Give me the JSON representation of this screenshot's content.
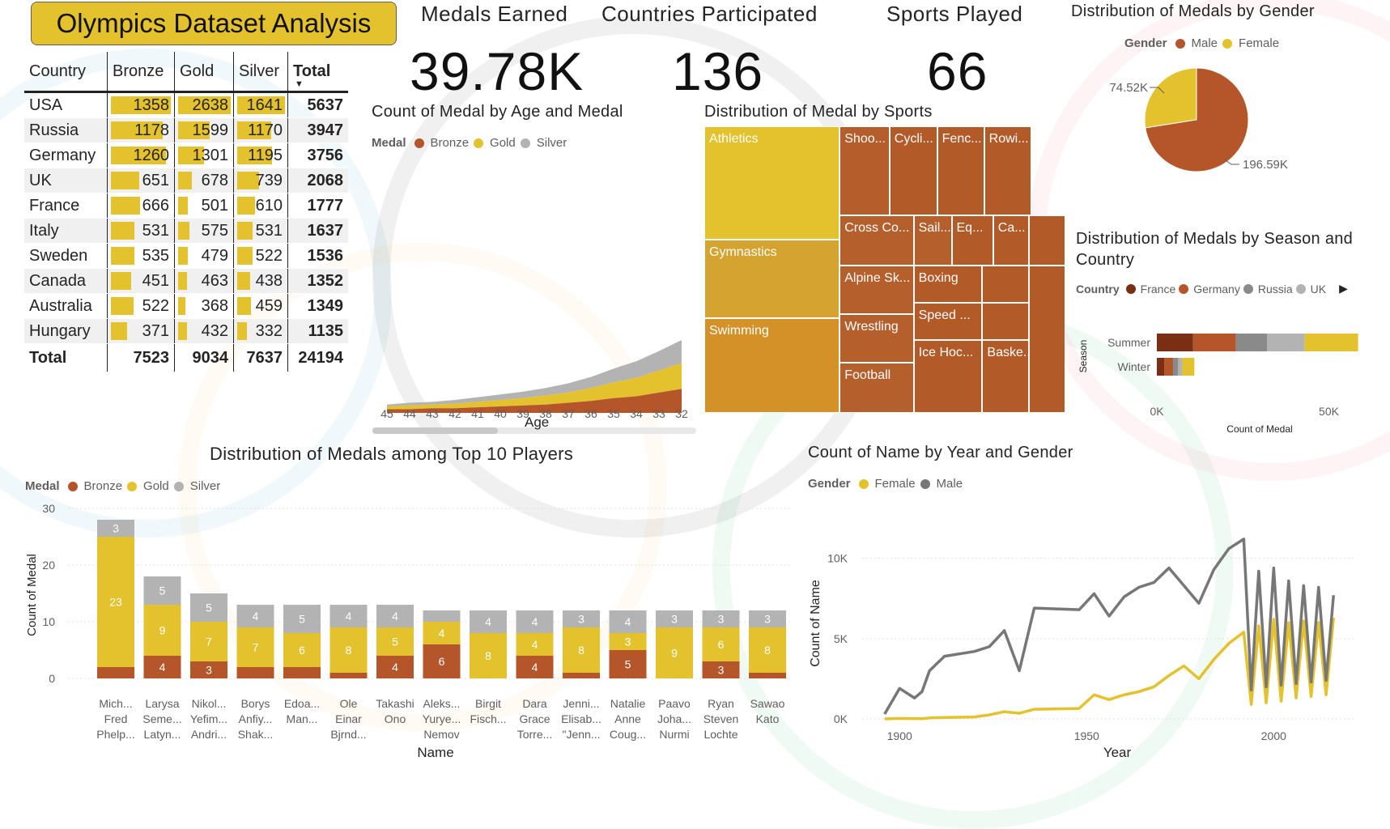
{
  "dashboard": {
    "title": "Olympics Dataset Analysis",
    "kpis": [
      {
        "label": "Medals Earned",
        "value": "39.78K"
      },
      {
        "label": "Countries Participated",
        "value": "136"
      },
      {
        "label": "Sports Played",
        "value": "66"
      }
    ]
  },
  "colors": {
    "bronze": "#b4552a",
    "gold": "#e3c22e",
    "silver": "#b3b3b3",
    "male": "#b4552a",
    "female": "#e3c22e",
    "france": "#7a2e14",
    "germany": "#b4552a",
    "russia": "#8a8a8a",
    "uk": "#b3b3b3",
    "title_bg": "#e3c22e"
  },
  "medal_table": {
    "headers": [
      "Country",
      "Bronze",
      "Gold",
      "Silver",
      "Total"
    ],
    "rows": [
      {
        "country": "USA",
        "bronze": 1358,
        "gold": 2638,
        "silver": 1641,
        "total": 5637
      },
      {
        "country": "Russia",
        "bronze": 1178,
        "gold": 1599,
        "silver": 1170,
        "total": 3947
      },
      {
        "country": "Germany",
        "bronze": 1260,
        "gold": 1301,
        "silver": 1195,
        "total": 3756
      },
      {
        "country": "UK",
        "bronze": 651,
        "gold": 678,
        "silver": 739,
        "total": 2068
      },
      {
        "country": "France",
        "bronze": 666,
        "gold": 501,
        "silver": 610,
        "total": 1777
      },
      {
        "country": "Italy",
        "bronze": 531,
        "gold": 575,
        "silver": 531,
        "total": 1637
      },
      {
        "country": "Sweden",
        "bronze": 535,
        "gold": 479,
        "silver": 522,
        "total": 1536
      },
      {
        "country": "Canada",
        "bronze": 451,
        "gold": 463,
        "silver": 438,
        "total": 1352
      },
      {
        "country": "Australia",
        "bronze": 522,
        "gold": 368,
        "silver": 459,
        "total": 1349
      },
      {
        "country": "Hungary",
        "bronze": 371,
        "gold": 432,
        "silver": 332,
        "total": 1135
      }
    ],
    "totals": {
      "label": "Total",
      "bronze": 7523,
      "gold": 9034,
      "silver": 7637,
      "total": 24194
    }
  },
  "chart_data": [
    {
      "id": "age",
      "type": "area",
      "title": "Count of Medal by Age and Medal",
      "legend_title": "Medal",
      "xlabel": "Age",
      "categories": [
        "45",
        "44",
        "43",
        "42",
        "41",
        "40",
        "39",
        "38",
        "37",
        "36",
        "35",
        "34",
        "33",
        "32"
      ],
      "series": [
        {
          "name": "Bronze",
          "values": [
            20,
            20,
            25,
            25,
            30,
            35,
            40,
            45,
            55,
            65,
            80,
            90,
            110,
            130
          ]
        },
        {
          "name": "Gold",
          "values": [
            15,
            20,
            20,
            25,
            30,
            35,
            40,
            50,
            55,
            70,
            85,
            100,
            120,
            140
          ]
        },
        {
          "name": "Silver",
          "values": [
            10,
            15,
            15,
            20,
            25,
            30,
            35,
            40,
            50,
            60,
            75,
            90,
            105,
            125
          ]
        }
      ]
    },
    {
      "id": "sports",
      "type": "treemap",
      "title": "Distribution of Medal by Sports",
      "items": [
        {
          "name": "Athletics",
          "value": 3900
        },
        {
          "name": "Gymnastics",
          "value": 2700
        },
        {
          "name": "Swimming",
          "value": 2500
        },
        {
          "name": "Shoo...",
          "value": 1000
        },
        {
          "name": "Cycli...",
          "value": 900
        },
        {
          "name": "Fenc...",
          "value": 800
        },
        {
          "name": "Rowi...",
          "value": 800
        },
        {
          "name": "Cross Co...",
          "value": 600
        },
        {
          "name": "Sail...",
          "value": 450
        },
        {
          "name": "Eq...",
          "value": 400
        },
        {
          "name": "Ca...",
          "value": 350
        },
        {
          "name": "Alpine Sk...",
          "value": 600
        },
        {
          "name": "Boxing",
          "value": 420
        },
        {
          "name": "Wrestling",
          "value": 650
        },
        {
          "name": "Speed ...",
          "value": 380
        },
        {
          "name": "Football",
          "value": 550
        },
        {
          "name": "Ice Hoc...",
          "value": 400
        },
        {
          "name": "Baske...",
          "value": 380
        }
      ]
    },
    {
      "id": "gender",
      "type": "pie",
      "title": "Distribution of Medals by Gender",
      "legend_title": "Gender",
      "labels": [
        "Male",
        "Female"
      ],
      "values": [
        196.59,
        74.52
      ],
      "data_labels": [
        "196.59K",
        "74.52K"
      ]
    },
    {
      "id": "season",
      "type": "bar",
      "orientation": "horizontal",
      "stacked": true,
      "title": "Distribution of Medals by Season and Country",
      "legend_title": "Country",
      "ylabel": "Season",
      "xlabel": "Count of Medal",
      "categories": [
        "Summer",
        "Winter"
      ],
      "xlim": [
        0,
        60000
      ],
      "xticks": [
        "0K",
        "50K"
      ],
      "series": [
        {
          "name": "France",
          "values": [
            10500,
            2200
          ]
        },
        {
          "name": "Germany",
          "values": [
            12500,
            2500
          ]
        },
        {
          "name": "Russia",
          "values": [
            9000,
            1500
          ]
        },
        {
          "name": "UK",
          "values": [
            11000,
            1200
          ]
        },
        {
          "name": "Other",
          "values": [
            15500,
            3500
          ]
        }
      ]
    },
    {
      "id": "players",
      "type": "bar",
      "stacked": true,
      "title": "Distribution of Medals among Top 10 Players",
      "legend_title": "Medal",
      "xlabel": "Name",
      "ylabel": "Count of Medal",
      "ylim": [
        0,
        30
      ],
      "yticks": [
        0,
        10,
        20,
        30
      ],
      "categories": [
        "Mich... Fred Phelp...",
        "Larysa Seme... Latyn...",
        "Nikol... Yefim... Andri...",
        "Borys Anfiy... Shak...",
        "Edoa... Man...",
        "Ole Einar Bjrnd...",
        "Takashi Ono",
        "Aleks... Yurye... Nemov",
        "Birgit Fisch...",
        "Dara Grace Torre...",
        "Jenni... Elisab... \"Jenn...",
        "Natalie Anne Coug...",
        "Paavo Joha... Nurmi",
        "Ryan Steven Lochte",
        "Sawao Kato"
      ],
      "series": [
        {
          "name": "Bronze",
          "values": [
            2,
            4,
            3,
            2,
            2,
            1,
            4,
            6,
            0,
            4,
            1,
            5,
            0,
            3,
            1
          ]
        },
        {
          "name": "Gold",
          "values": [
            23,
            9,
            7,
            7,
            6,
            8,
            5,
            4,
            8,
            4,
            8,
            3,
            9,
            6,
            8
          ]
        },
        {
          "name": "Silver",
          "values": [
            3,
            5,
            5,
            4,
            5,
            4,
            4,
            2,
            4,
            4,
            3,
            4,
            3,
            3,
            3
          ]
        }
      ],
      "data_labels": [
        [
          "",
          "4",
          "3",
          "",
          "",
          "",
          "4",
          "6",
          "",
          "4",
          "",
          "5",
          "",
          "3",
          ""
        ],
        [
          "23",
          "9",
          "7",
          "7",
          "6",
          "8",
          "5",
          "4",
          "8",
          "4",
          "8",
          "3",
          "9",
          "6",
          "8"
        ],
        [
          "3",
          "5",
          "5",
          "4",
          "5",
          "4",
          "4",
          "",
          "4",
          "4",
          "3",
          "4",
          "3",
          "3",
          "3"
        ]
      ]
    },
    {
      "id": "year",
      "type": "line",
      "title": "Count of Name by Year and Gender",
      "legend_title": "Gender",
      "xlabel": "Year",
      "ylabel": "Count of Name",
      "ylim": [
        0,
        12000
      ],
      "yticks": [
        "0K",
        "5K",
        "10K"
      ],
      "ytick_values": [
        0,
        5000,
        10000
      ],
      "xlim": [
        1890,
        2022
      ],
      "xticks": [
        1900,
        1950,
        2000
      ],
      "series": [
        {
          "name": "Female",
          "x": [
            1896,
            1900,
            1904,
            1906,
            1908,
            1912,
            1920,
            1924,
            1928,
            1932,
            1936,
            1948,
            1952,
            1956,
            1960,
            1964,
            1968,
            1972,
            1976,
            1980,
            1984,
            1988,
            1992,
            1994,
            1996,
            1998,
            2000,
            2002,
            2004,
            2006,
            2008,
            2010,
            2012,
            2014,
            2016
          ],
          "y": [
            0,
            30,
            20,
            10,
            60,
            90,
            120,
            250,
            450,
            350,
            600,
            650,
            1500,
            1200,
            1500,
            1700,
            2000,
            2700,
            3300,
            2500,
            3700,
            4700,
            5400,
            900,
            5800,
            1000,
            6200,
            1100,
            6000,
            1300,
            6100,
            1400,
            6000,
            1500,
            6300
          ]
        },
        {
          "name": "Male",
          "x": [
            1896,
            1900,
            1904,
            1906,
            1908,
            1912,
            1920,
            1924,
            1928,
            1932,
            1936,
            1948,
            1952,
            1956,
            1960,
            1964,
            1968,
            1972,
            1976,
            1980,
            1984,
            1988,
            1992,
            1994,
            1996,
            1998,
            2000,
            2002,
            2004,
            2006,
            2008,
            2010,
            2012,
            2014,
            2016
          ],
          "y": [
            300,
            1900,
            1300,
            1700,
            3000,
            3900,
            4200,
            4500,
            5500,
            3000,
            6900,
            6800,
            7800,
            6400,
            7600,
            8200,
            8500,
            9400,
            8300,
            7200,
            9300,
            10600,
            11200,
            1800,
            9200,
            2000,
            9400,
            2100,
            8600,
            2200,
            8300,
            2300,
            8200,
            2400,
            7700
          ]
        }
      ]
    }
  ]
}
